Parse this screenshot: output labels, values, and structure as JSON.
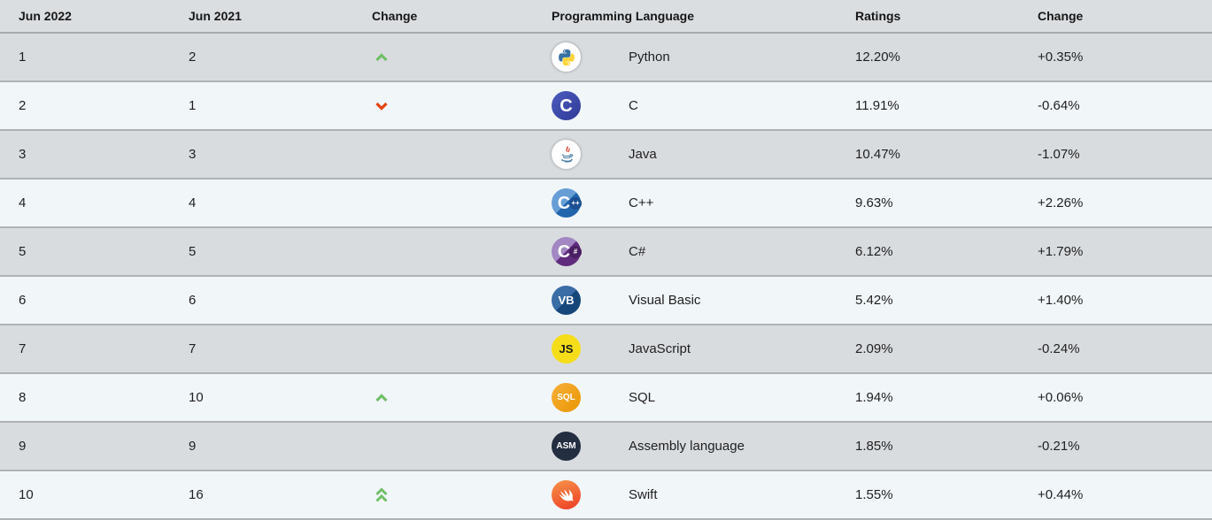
{
  "header": {
    "col_rank_now": "Jun 2022",
    "col_rank_prev": "Jun 2021",
    "col_position_change": "Change",
    "col_language": "Programming Language",
    "col_ratings": "Ratings",
    "col_ratings_change": "Change"
  },
  "colors": {
    "header_bg": "#dbdee1",
    "row_gray": "#d9dcdf",
    "row_light": "#f1f6f9",
    "divider": "#aeb2b5",
    "arrow_up_green": "#72bf6a",
    "arrow_down_red": "#e5430e"
  },
  "rows": [
    {
      "rank_2022": "1",
      "rank_2021": "2",
      "position_change": "up",
      "icon": "python-icon",
      "language": "Python",
      "ratings": "12.20%",
      "ratings_change": "+0.35%"
    },
    {
      "rank_2022": "2",
      "rank_2021": "1",
      "position_change": "down",
      "icon": "c-icon",
      "language": "C",
      "ratings": "11.91%",
      "ratings_change": "-0.64%"
    },
    {
      "rank_2022": "3",
      "rank_2021": "3",
      "position_change": "",
      "icon": "java-icon",
      "language": "Java",
      "ratings": "10.47%",
      "ratings_change": "-1.07%"
    },
    {
      "rank_2022": "4",
      "rank_2021": "4",
      "position_change": "",
      "icon": "cpp-icon",
      "language": "C++",
      "ratings": "9.63%",
      "ratings_change": "+2.26%"
    },
    {
      "rank_2022": "5",
      "rank_2021": "5",
      "position_change": "",
      "icon": "csharp-icon",
      "language": "C#",
      "ratings": "6.12%",
      "ratings_change": "+1.79%"
    },
    {
      "rank_2022": "6",
      "rank_2021": "6",
      "position_change": "",
      "icon": "visual-basic-icon",
      "language": "Visual Basic",
      "ratings": "5.42%",
      "ratings_change": "+1.40%"
    },
    {
      "rank_2022": "7",
      "rank_2021": "7",
      "position_change": "",
      "icon": "javascript-icon",
      "language": "JavaScript",
      "ratings": "2.09%",
      "ratings_change": "-0.24%"
    },
    {
      "rank_2022": "8",
      "rank_2021": "10",
      "position_change": "up",
      "icon": "sql-icon",
      "language": "SQL",
      "ratings": "1.94%",
      "ratings_change": "+0.06%"
    },
    {
      "rank_2022": "9",
      "rank_2021": "9",
      "position_change": "",
      "icon": "assembly-icon",
      "language": "Assembly language",
      "ratings": "1.85%",
      "ratings_change": "-0.21%"
    },
    {
      "rank_2022": "10",
      "rank_2021": "16",
      "position_change": "up-double",
      "icon": "swift-icon",
      "language": "Swift",
      "ratings": "1.55%",
      "ratings_change": "+0.44%"
    }
  ],
  "icons": {
    "python-icon": {
      "type": "python-logo",
      "bg": "#ffffff",
      "blue": "#3771a2",
      "yellow": "#ffd43b"
    },
    "c-icon": {
      "type": "letter",
      "label": "C",
      "badge": "",
      "split": false,
      "bg_from": "#4d5cbe",
      "bg_to": "#2e3a97",
      "badge_bg": "",
      "fg": "#ffffff"
    },
    "java-icon": {
      "type": "java-logo",
      "bg": "#ffffff",
      "cup": "#4479a1",
      "flame": "#d63f33"
    },
    "cpp-icon": {
      "type": "letter",
      "label": "C",
      "badge": "++",
      "split": true,
      "bg_from": "#679ed6",
      "bg_to": "#2166ac",
      "badge_bg": "#1b4f91",
      "fg": "#ffffff"
    },
    "csharp-icon": {
      "type": "letter",
      "label": "C",
      "badge": "#",
      "split": true,
      "bg_from": "#a287c2",
      "bg_to": "#5f2b7d",
      "badge_bg": "#4a1f62",
      "fg": "#ffffff"
    },
    "visual-basic-icon": {
      "type": "letter",
      "label": "VB",
      "badge": "",
      "split": true,
      "bg_from": "#3a6da6",
      "bg_to": "#16477b",
      "badge_bg": "",
      "fg": "#ffffff"
    },
    "javascript-icon": {
      "type": "letter",
      "label": "JS",
      "badge": "",
      "split": false,
      "bg_from": "#f5de19",
      "bg_to": "#f5de19",
      "badge_bg": "",
      "fg": "#1a1a1a"
    },
    "sql-icon": {
      "type": "letter",
      "label": "SQL",
      "badge": "",
      "split": false,
      "bg_from": "#f6b03a",
      "bg_to": "#eb9600",
      "badge_bg": "",
      "fg": "#ffffff"
    },
    "assembly-icon": {
      "type": "letter",
      "label": "ASM",
      "badge": "",
      "split": false,
      "bg_from": "#232e40",
      "bg_to": "#232e40",
      "badge_bg": "",
      "fg": "#ffffff"
    },
    "swift-icon": {
      "type": "swift-logo",
      "bg_from": "#f8964b",
      "bg_to": "#ec3b24",
      "bird": "#ffffff"
    }
  }
}
